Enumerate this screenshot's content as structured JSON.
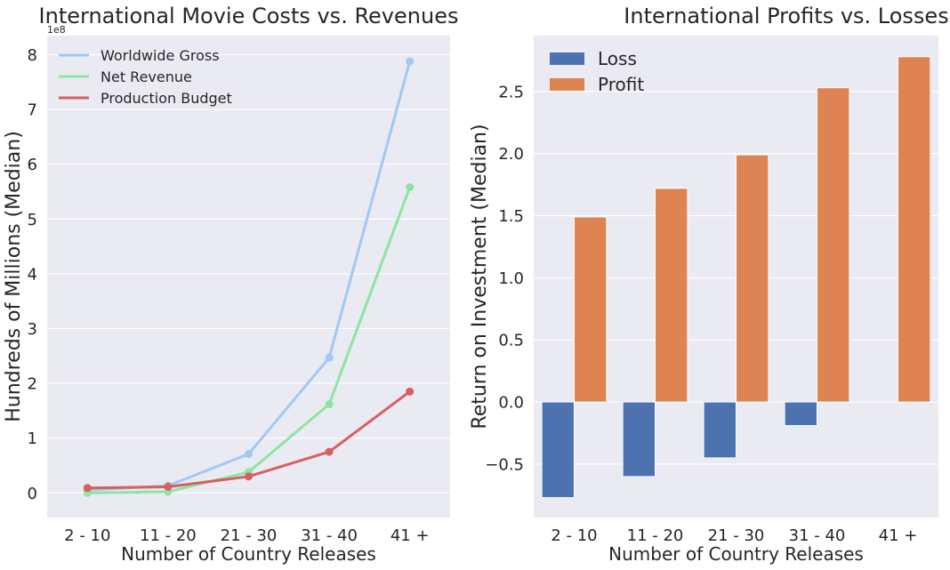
{
  "chart_data": [
    {
      "type": "line",
      "title": "International Movie Costs vs. Revenues",
      "xlabel": "Number of Country Releases",
      "ylabel": "Hundreds of Millions (Median)",
      "y_offset_label": "1e8",
      "categories": [
        "2 - 10",
        "11 - 20",
        "21 - 30",
        "31 - 40",
        "41 +"
      ],
      "ylim": [
        -0.45,
        8.35
      ],
      "yticks": [
        0,
        1,
        2,
        3,
        4,
        5,
        6,
        7,
        8
      ],
      "ytick_labels": [
        "0",
        "1",
        "2",
        "3",
        "4",
        "5",
        "6",
        "7",
        "8"
      ],
      "grid": true,
      "legend_position": "upper-left",
      "series": [
        {
          "name": "Worldwide Gross",
          "color": "#a1c9f4",
          "values": [
            0.05,
            0.13,
            0.71,
            2.47,
            7.88
          ]
        },
        {
          "name": "Net Revenue",
          "color": "#8de5a1",
          "values": [
            0.0,
            0.02,
            0.38,
            1.62,
            5.58
          ]
        },
        {
          "name": "Production Budget",
          "color": "#d65f5f",
          "values": [
            0.09,
            0.11,
            0.3,
            0.75,
            1.85
          ]
        }
      ]
    },
    {
      "type": "bar",
      "title": "International Profits vs. Losses",
      "xlabel": "Number of Country Releases",
      "ylabel": "Return on Investment (Median)",
      "categories": [
        "2 - 10",
        "11 - 20",
        "21 - 30",
        "31 - 40",
        "41 +"
      ],
      "ylim": [
        -0.93,
        2.95
      ],
      "yticks": [
        -0.5,
        0.0,
        0.5,
        1.0,
        1.5,
        2.0,
        2.5
      ],
      "ytick_labels": [
        "−0.5",
        "0.0",
        "0.5",
        "1.0",
        "1.5",
        "2.0",
        "2.5"
      ],
      "grid": true,
      "legend_position": "upper-left",
      "series": [
        {
          "name": "Loss",
          "color": "#4c72b0",
          "values": [
            -0.77,
            -0.6,
            -0.45,
            -0.19,
            null
          ]
        },
        {
          "name": "Profit",
          "color": "#dd8452",
          "values": [
            1.49,
            1.72,
            1.99,
            2.53,
            2.78
          ]
        }
      ]
    }
  ],
  "style": {
    "axes_background": "#eaeaf2",
    "grid_color": "#ffffff",
    "text_color": "#262626"
  }
}
